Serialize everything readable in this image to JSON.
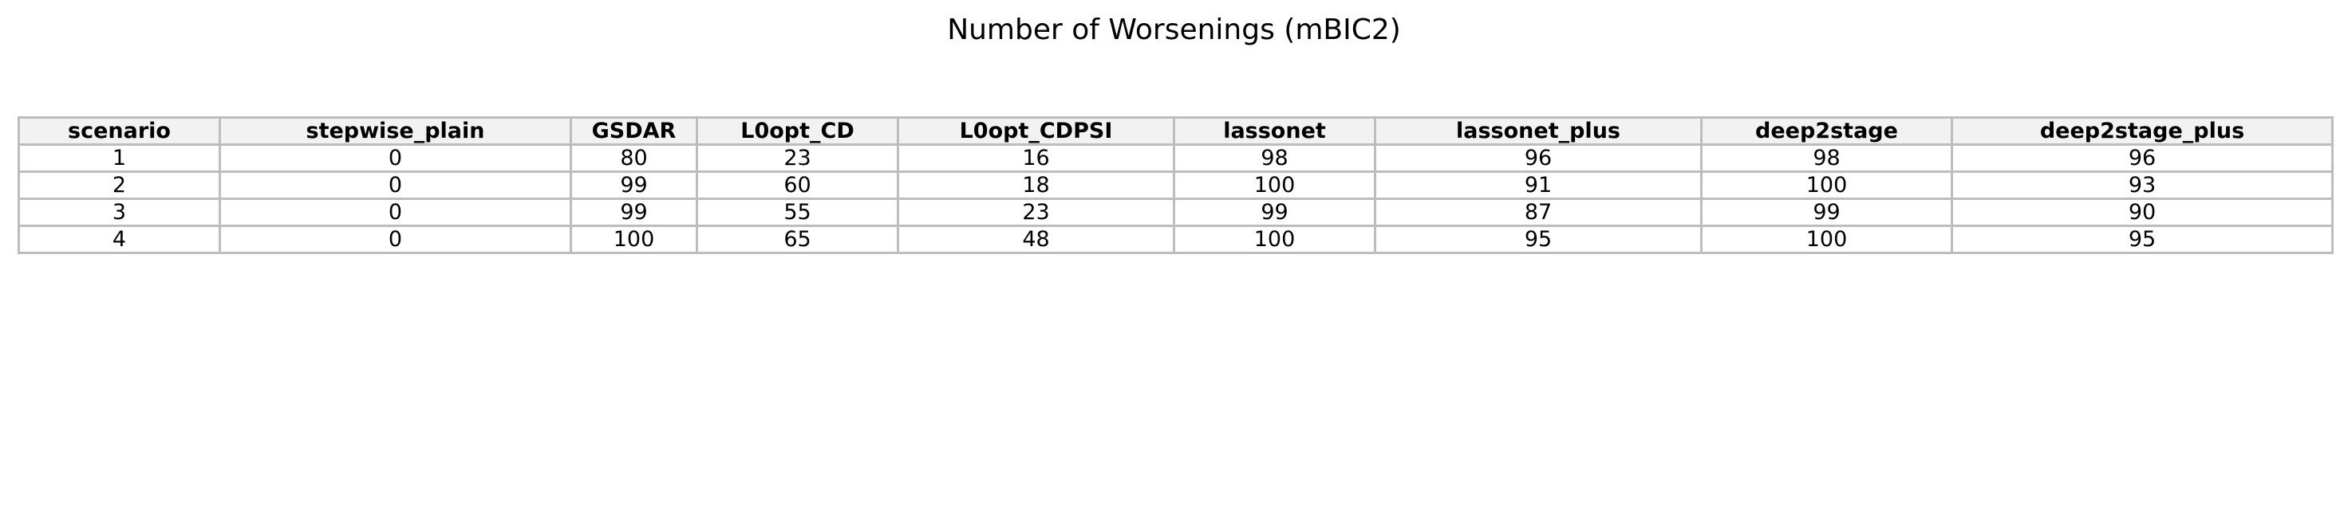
{
  "chart_data": {
    "type": "table",
    "title": "Number of Worsenings (mBIC2)",
    "columns": [
      "scenario",
      "stepwise_plain",
      "GSDAR",
      "L0opt_CD",
      "L0opt_CDPSI",
      "lassonet",
      "lassonet_plus",
      "deep2stage",
      "deep2stage_plus"
    ],
    "rows": [
      [
        "1",
        "0",
        "80",
        "23",
        "16",
        "98",
        "96",
        "98",
        "96"
      ],
      [
        "2",
        "0",
        "99",
        "60",
        "18",
        "100",
        "91",
        "100",
        "93"
      ],
      [
        "3",
        "0",
        "99",
        "55",
        "23",
        "99",
        "87",
        "99",
        "90"
      ],
      [
        "4",
        "0",
        "100",
        "65",
        "48",
        "100",
        "95",
        "100",
        "95"
      ]
    ],
    "header_background": "#f2f2f2",
    "border_color": "#bdbdbd"
  }
}
